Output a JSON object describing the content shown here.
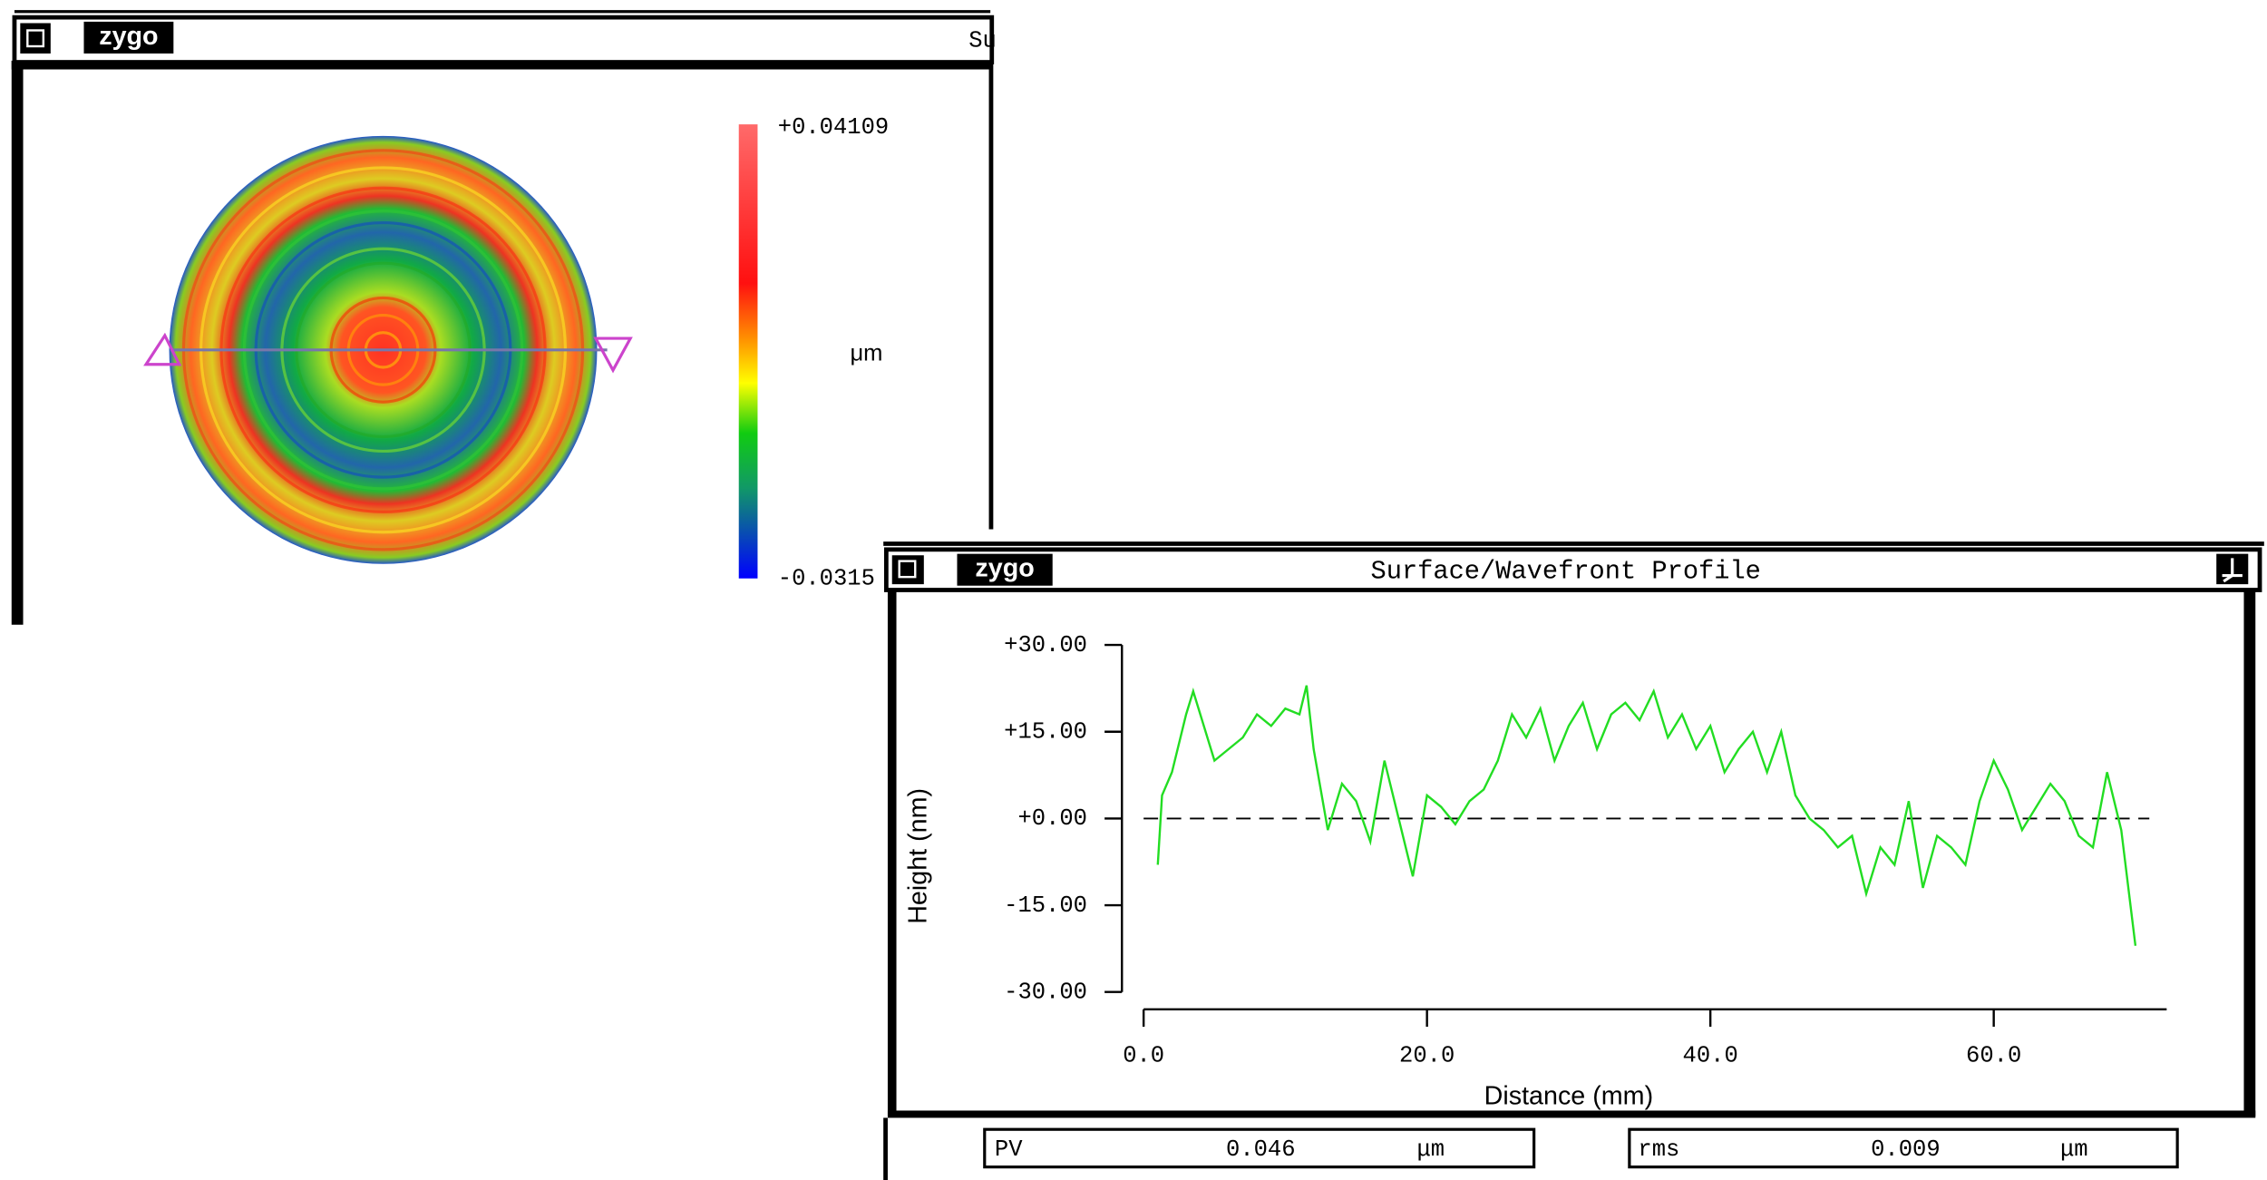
{
  "map_window": {
    "title_logo": "zygo",
    "title": "Su",
    "colorbar": {
      "max_label": "+0.04109",
      "min_label": "-0.0315",
      "unit": "μm"
    }
  },
  "profile_window": {
    "title_logo": "zygo",
    "title": "Surface/Wavefront Profile",
    "chart_data": {
      "type": "line",
      "x_label": "Distance (mm)",
      "y_label": "Height (nm)",
      "xlim": [
        0,
        72
      ],
      "ylim": [
        -30,
        30
      ],
      "xticks": [
        {
          "value": 0,
          "label": "0.0"
        },
        {
          "value": 20,
          "label": "20.0"
        },
        {
          "value": 40,
          "label": "40.0"
        },
        {
          "value": 60,
          "label": "60.0"
        }
      ],
      "yticks": [
        {
          "value": 30,
          "label": "+30.00"
        },
        {
          "value": 15,
          "label": "+15.00"
        },
        {
          "value": 0,
          "label": "+0.00"
        },
        {
          "value": -15,
          "label": "-15.00"
        },
        {
          "value": -30,
          "label": "-30.00"
        }
      ],
      "series": [
        {
          "color": "#22dd22",
          "x": [
            1,
            1.3,
            2,
            3,
            3.5,
            4,
            5,
            6,
            7,
            8,
            9,
            10,
            11,
            11.5,
            12,
            13,
            14,
            15,
            16,
            17,
            18,
            19,
            20,
            21,
            22,
            23,
            24,
            25,
            26,
            27,
            28,
            29,
            30,
            31,
            32,
            33,
            34,
            35,
            36,
            37,
            38,
            39,
            40,
            41,
            42,
            43,
            44,
            45,
            46,
            47,
            48,
            49,
            50,
            51,
            52,
            53,
            54,
            55,
            56,
            57,
            58,
            59,
            60,
            61,
            62,
            63,
            64,
            65,
            66,
            67,
            68,
            69,
            70
          ],
          "values": [
            -8,
            4,
            8,
            18,
            22,
            18,
            10,
            12,
            14,
            18,
            16,
            19,
            18,
            23,
            12,
            -2,
            6,
            3,
            -4,
            10,
            0,
            -10,
            4,
            2,
            -1,
            3,
            5,
            10,
            18,
            14,
            19,
            10,
            16,
            20,
            12,
            18,
            20,
            17,
            22,
            14,
            18,
            12,
            16,
            8,
            12,
            15,
            8,
            15,
            4,
            0,
            -2,
            -5,
            -3,
            -13,
            -5,
            -8,
            3,
            -12,
            -3,
            -5,
            -8,
            3,
            10,
            5,
            -2,
            2,
            6,
            3,
            -3,
            -5,
            8,
            -2,
            -22
          ]
        }
      ]
    },
    "stats": {
      "pv": {
        "label": "PV",
        "value": "0.046",
        "unit": "μm"
      },
      "rms": {
        "label": "rms",
        "value": "0.009",
        "unit": "μm"
      }
    }
  }
}
